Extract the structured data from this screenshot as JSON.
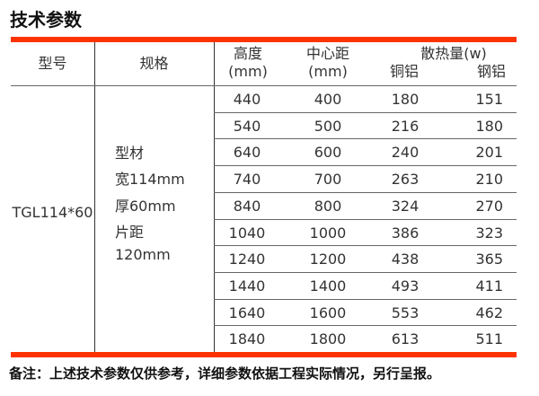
{
  "title": "技术参数",
  "header": {
    "model": "型号",
    "spec": "规格",
    "height": "高度",
    "height_unit": "(mm)",
    "center": "中心距",
    "center_unit": "(mm)",
    "heat": "散热量(w)",
    "copper": "铜铝",
    "steel": "钢铝"
  },
  "model": "TGL114*60",
  "spec": [
    "型材",
    "宽114mm",
    "厚60mm",
    "片距",
    "120mm"
  ],
  "rows": [
    [
      "440",
      "400",
      "180",
      "151"
    ],
    [
      "540",
      "500",
      "216",
      "180"
    ],
    [
      "640",
      "600",
      "240",
      "201"
    ],
    [
      "740",
      "700",
      "263",
      "210"
    ],
    [
      "840",
      "800",
      "324",
      "270"
    ],
    [
      "1040",
      "1000",
      "386",
      "323"
    ],
    [
      "1240",
      "1200",
      "438",
      "365"
    ],
    [
      "1440",
      "1400",
      "493",
      "411"
    ],
    [
      "1640",
      "1600",
      "553",
      "462"
    ],
    [
      "1840",
      "1800",
      "613",
      "511"
    ]
  ],
  "note": "备注：上述技术参数仅供参考，详细参数依据工程实际情况，另行呈报。",
  "colors": {
    "accent": "#ff3300"
  }
}
